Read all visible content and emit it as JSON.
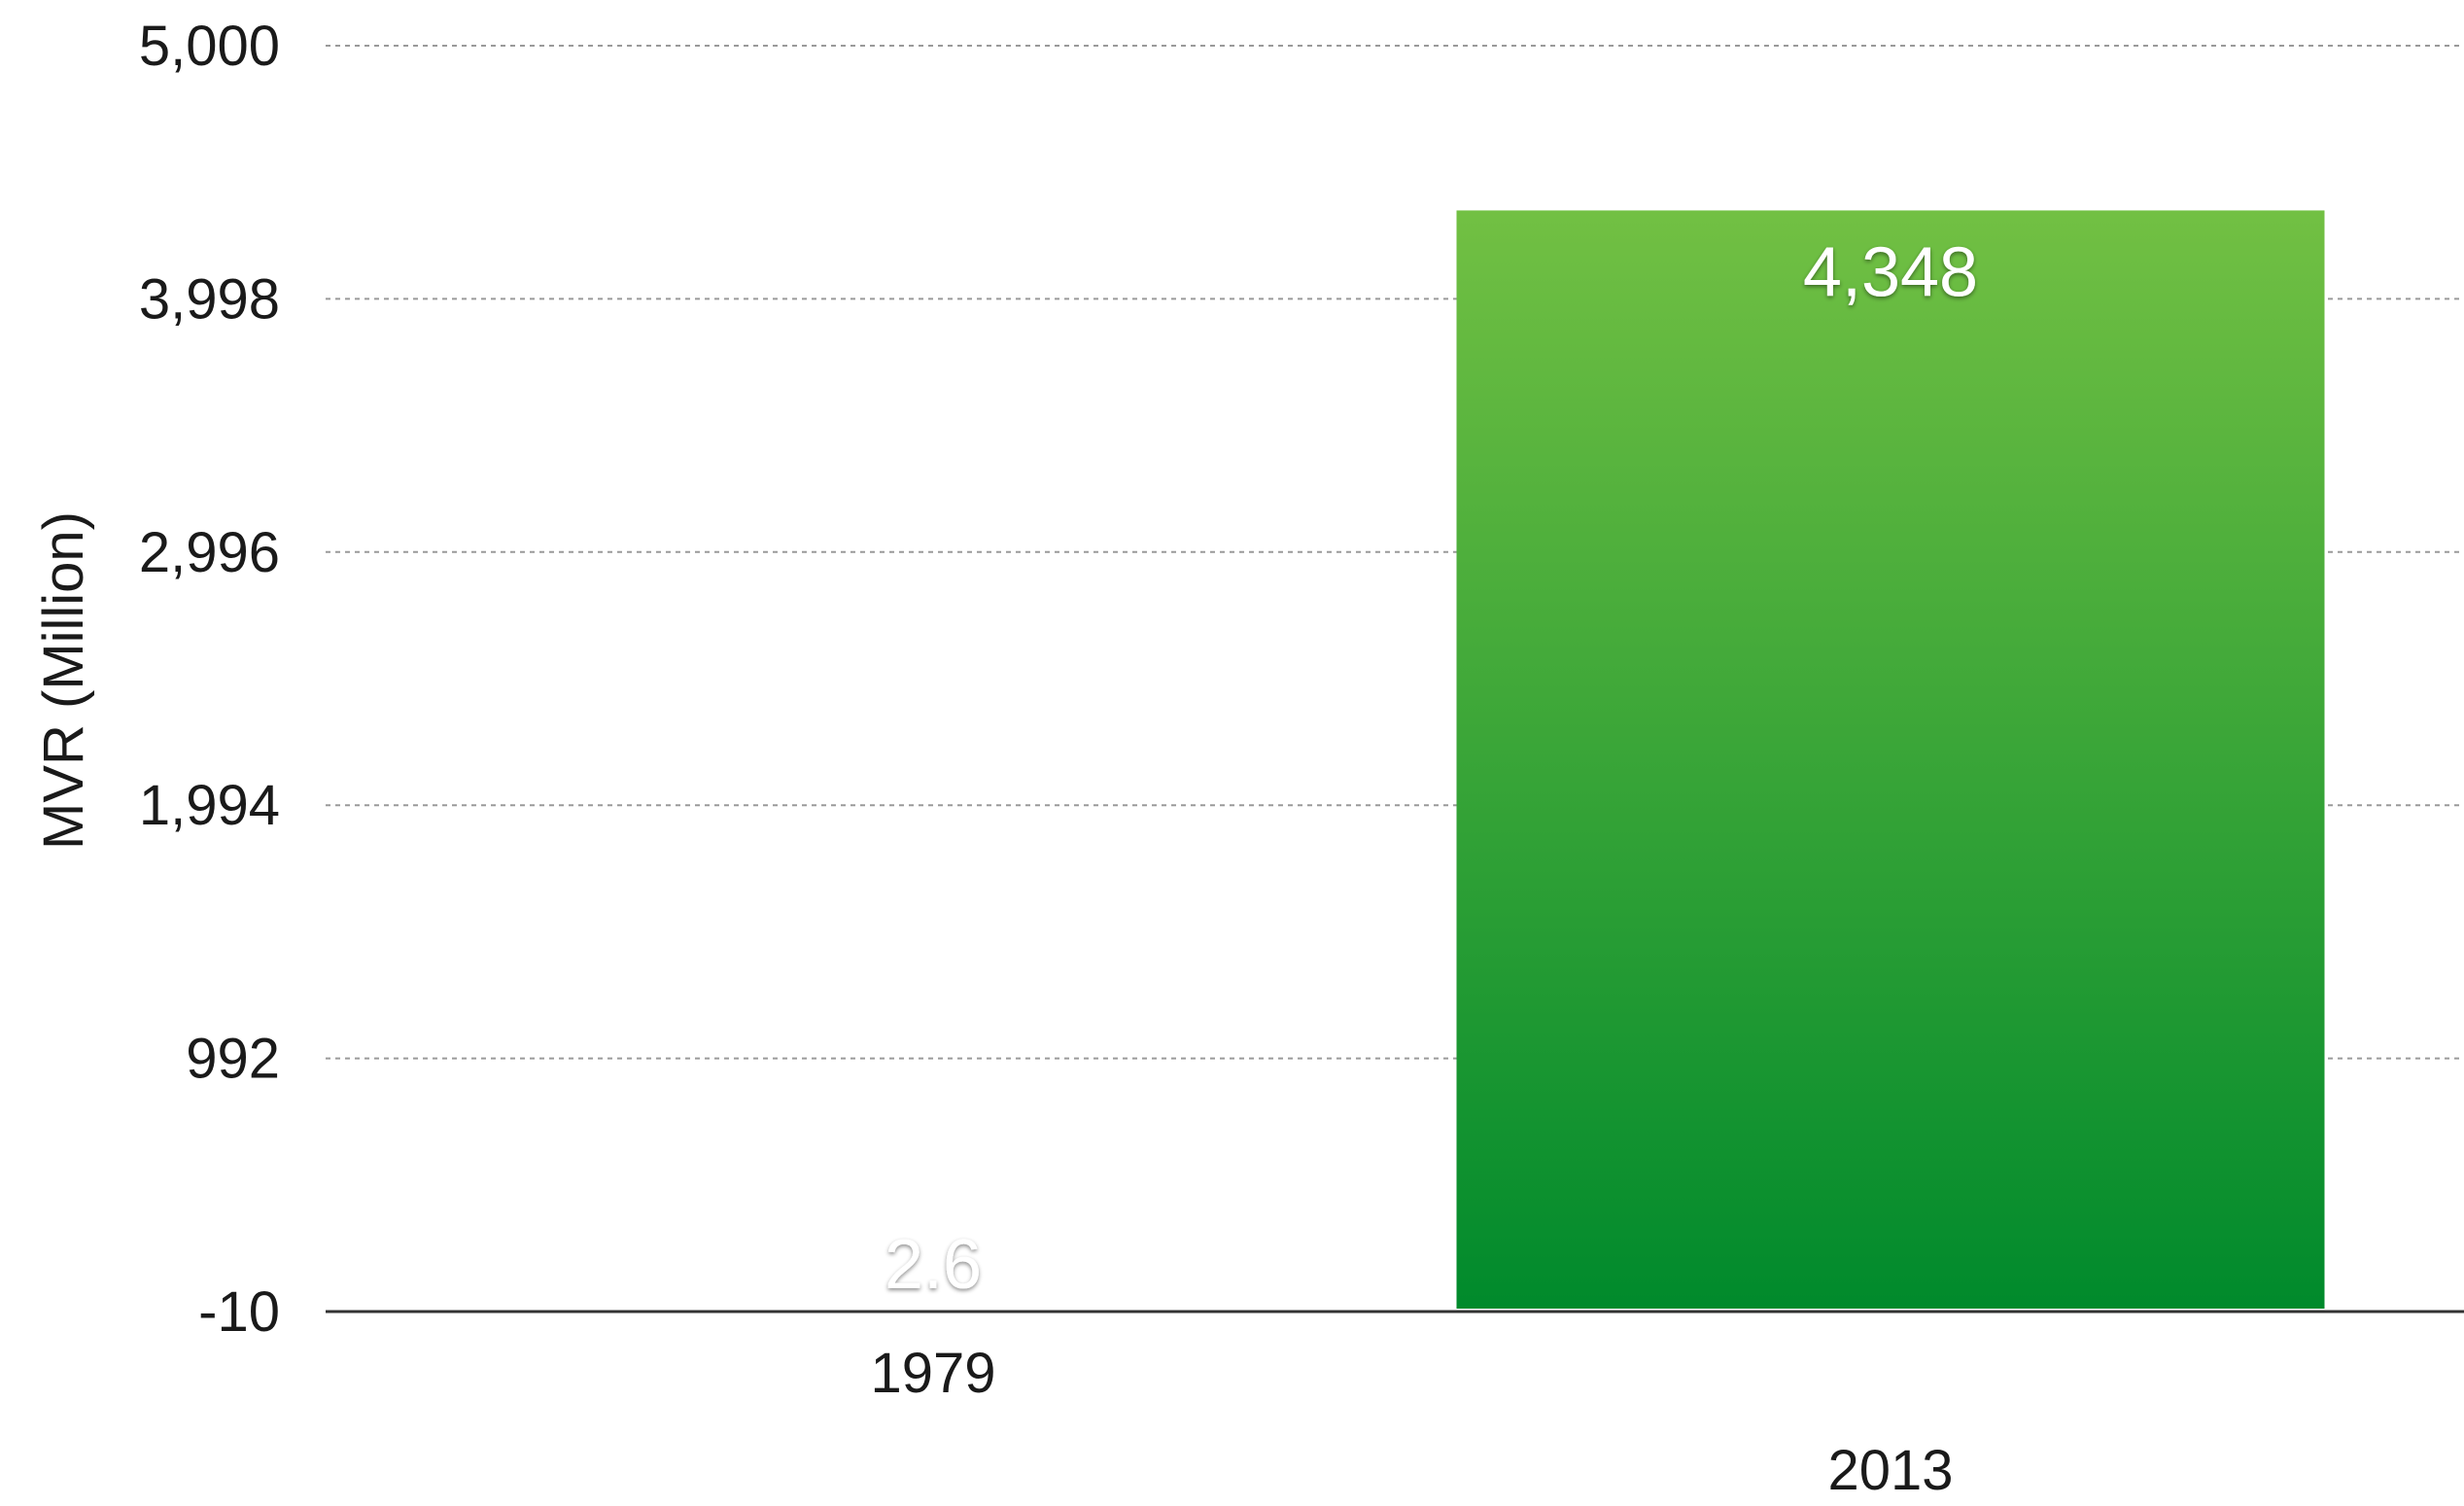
{
  "chart_data": {
    "type": "bar",
    "categories": [
      "1979",
      "2013"
    ],
    "values": [
      2.6,
      4348
    ],
    "data_labels": [
      "2.6",
      "4,348"
    ],
    "ylabel": "MVR (Million)",
    "ylim": [
      -10,
      5000
    ],
    "yticks": [
      -10,
      992,
      1994,
      2996,
      3998,
      5000
    ],
    "ytick_labels": [
      "-10",
      "992",
      "1,994",
      "2,996",
      "3,998",
      "5,000"
    ],
    "grid": true,
    "legend": "none",
    "colors": {
      "bar_top": "#72c043",
      "bar_bottom": "#008a2c",
      "grid": "#9a9a9a",
      "axis": "#333333"
    }
  }
}
